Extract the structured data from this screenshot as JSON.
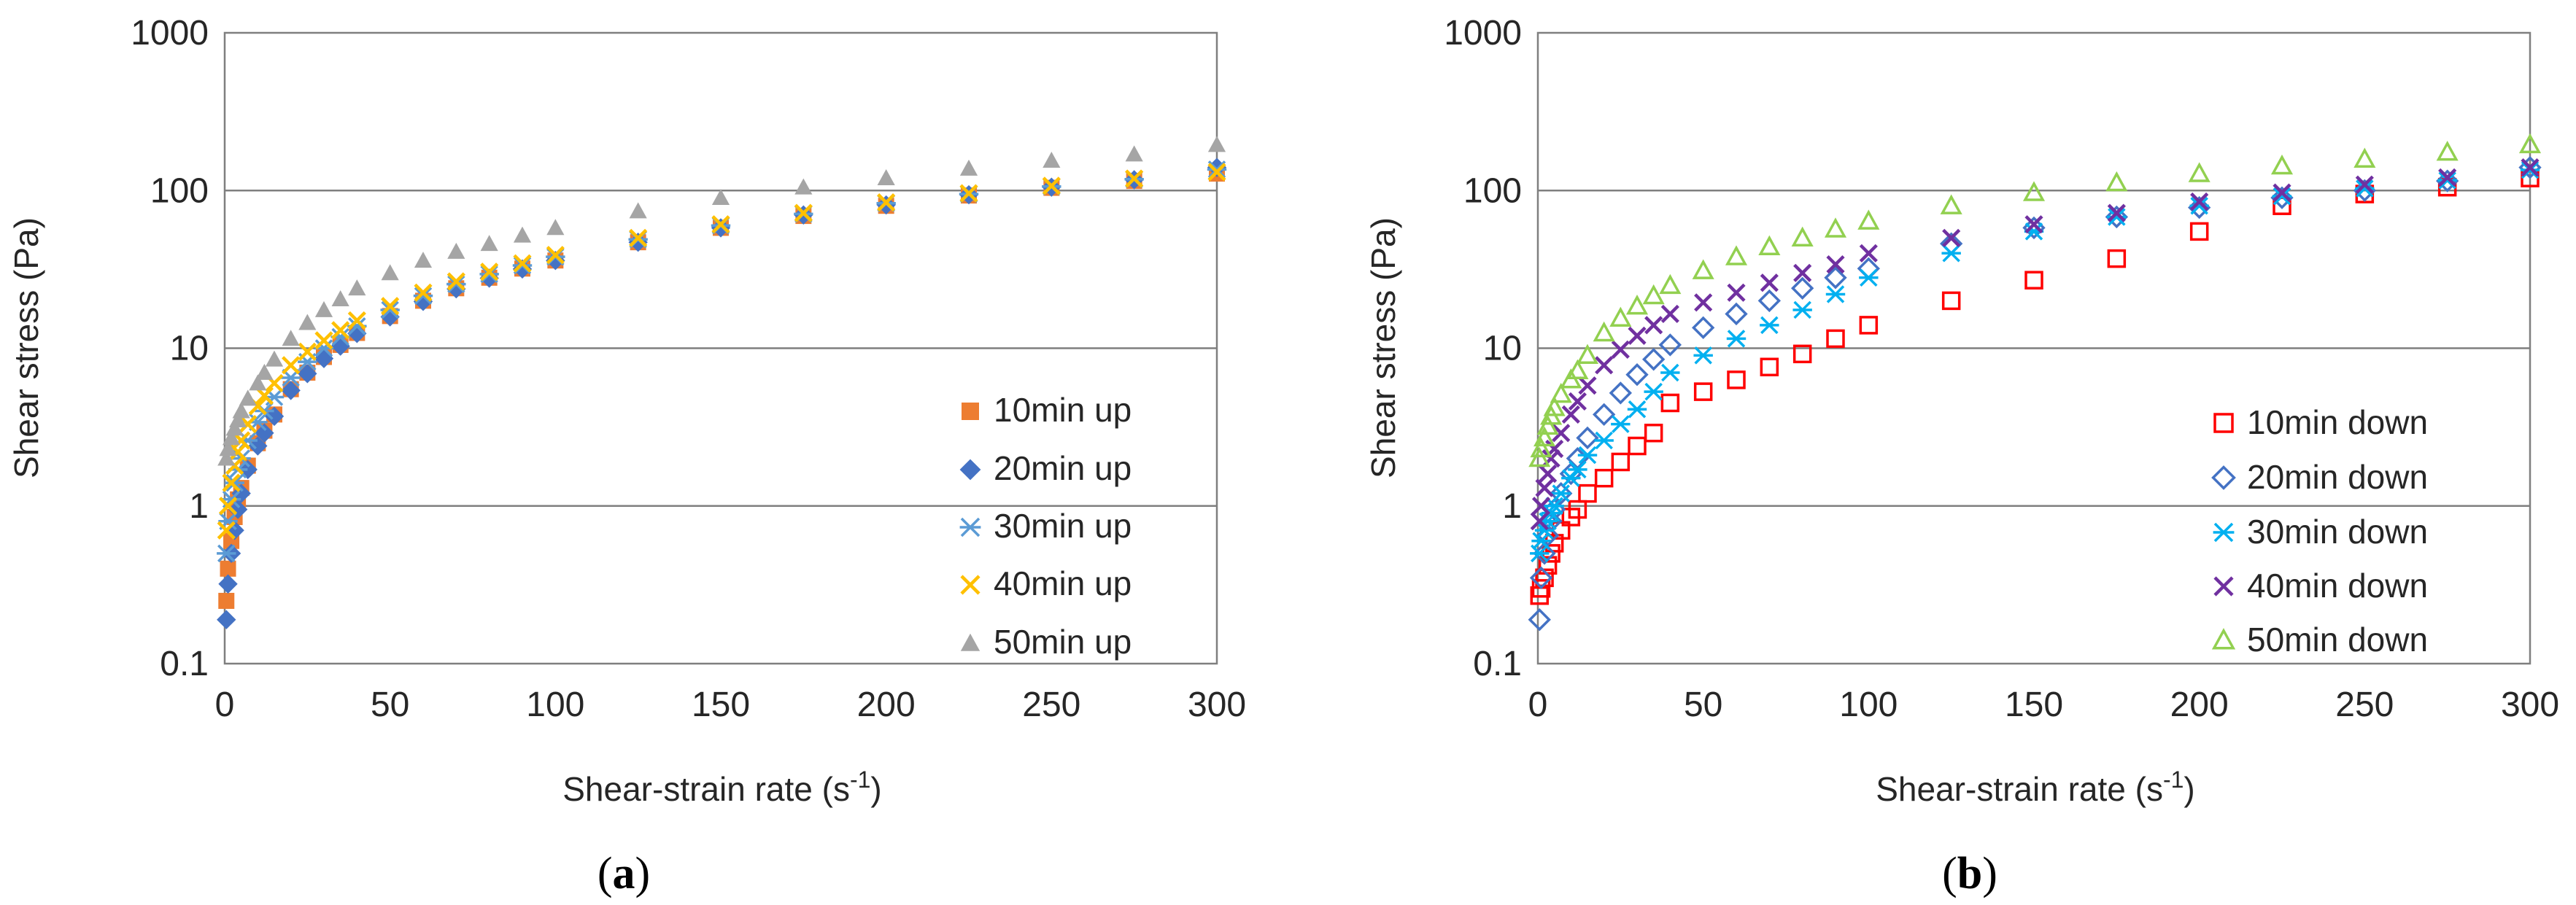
{
  "chart_data": [
    {
      "type": "scatter",
      "panel_label": {
        "open": "(",
        "letter": "a",
        "close": ")"
      },
      "xlabel": {
        "main": "Shear-strain rate (s",
        "sup": "-1",
        "end": ")"
      },
      "ylabel": "Shear  stress (Pa)",
      "yscale": "log",
      "xlim": [
        0,
        300
      ],
      "ylim": [
        0.1,
        1000
      ],
      "xticks": [
        "0",
        "50",
        "100",
        "150",
        "200",
        "250",
        "300"
      ],
      "yticks": [
        "0.1",
        "1",
        "10",
        "100",
        "1000"
      ],
      "grid": "horizontal",
      "legend_position": "right",
      "x": [
        0.5,
        1,
        2,
        3,
        4,
        5,
        7,
        10,
        12,
        15,
        20,
        25,
        30,
        35,
        40,
        50,
        60,
        70,
        80,
        90,
        100,
        125,
        150,
        175,
        200,
        225,
        250,
        275,
        300
      ],
      "series": [
        {
          "name": "10min up",
          "marker": "square",
          "color": "#ED7D31",
          "values": [
            0.25,
            0.4,
            0.6,
            0.85,
            1.1,
            1.3,
            1.8,
            2.5,
            3.0,
            3.8,
            5.5,
            7.0,
            8.8,
            10.5,
            12.5,
            16,
            20,
            24,
            28,
            32,
            36,
            47,
            58,
            69,
            80,
            93,
            104,
            115,
            128
          ]
        },
        {
          "name": "20min up",
          "marker": "diamond",
          "color": "#4472C4",
          "values": [
            0.19,
            0.32,
            0.5,
            0.7,
            0.95,
            1.2,
            1.7,
            2.4,
            2.9,
            3.7,
            5.4,
            6.9,
            8.6,
            10.3,
            12.4,
            15.8,
            19.8,
            23.8,
            27.8,
            31.8,
            36,
            47,
            58,
            70,
            81,
            94,
            105,
            117,
            140
          ]
        },
        {
          "name": "30min up",
          "marker": "asterisk",
          "color": "#5B9BD5",
          "values": [
            0.5,
            0.8,
            1.1,
            1.4,
            1.7,
            2.0,
            2.6,
            3.4,
            4.0,
            4.9,
            6.5,
            8.2,
            10,
            11.8,
            13.8,
            17.5,
            21.5,
            25.5,
            29.5,
            33.5,
            38,
            49,
            60,
            71,
            83,
            95,
            106,
            118,
            136
          ]
        },
        {
          "name": "40min up",
          "marker": "x",
          "color": "#FFC000",
          "values": [
            0.7,
            1.0,
            1.4,
            1.8,
            2.2,
            2.6,
            3.3,
            4.3,
            5.0,
            6.0,
            7.8,
            9.5,
            11.2,
            13,
            15,
            18.5,
            22.5,
            26.5,
            30.5,
            34.5,
            39,
            50,
            61,
            72,
            84,
            96,
            107,
            119,
            131
          ]
        },
        {
          "name": "50min up",
          "marker": "triangle",
          "color": "#A5A5A5",
          "values": [
            2.0,
            2.3,
            2.7,
            3.1,
            3.5,
            4.0,
            4.8,
            6.0,
            7.0,
            8.5,
            11.5,
            14.5,
            17.5,
            20.5,
            24,
            30,
            36,
            41,
            46,
            52,
            58,
            74,
            90,
            105,
            120,
            138,
            155,
            170,
            195
          ]
        }
      ]
    },
    {
      "type": "scatter",
      "panel_label": {
        "open": "(",
        "letter": "b",
        "close": ")"
      },
      "xlabel": {
        "main": "Shear-strain rate (s",
        "sup": "-1",
        "end": ")"
      },
      "ylabel": "Shear  stress (Pa)",
      "yscale": "log",
      "xlim": [
        0,
        300
      ],
      "ylim": [
        0.1,
        1000
      ],
      "xticks": [
        "0",
        "50",
        "100",
        "150",
        "200",
        "250",
        "300"
      ],
      "yticks": [
        "0.1",
        "1",
        "10",
        "100",
        "1000"
      ],
      "grid": "horizontal",
      "legend_position": "right",
      "x": [
        0.5,
        1,
        2,
        3,
        4,
        5,
        7,
        10,
        12,
        15,
        20,
        25,
        30,
        35,
        40,
        50,
        60,
        70,
        80,
        90,
        100,
        125,
        150,
        175,
        200,
        225,
        250,
        275,
        300
      ],
      "series": [
        {
          "name": "10min down",
          "marker": "open-square",
          "color": "#FF0000",
          "values": [
            0.27,
            0.3,
            0.35,
            0.42,
            0.5,
            0.58,
            0.7,
            0.85,
            0.95,
            1.2,
            1.5,
            1.9,
            2.4,
            2.9,
            4.5,
            5.3,
            6.3,
            7.6,
            9.2,
            11.5,
            14,
            20,
            27,
            37,
            55,
            80,
            95,
            105,
            120
          ]
        },
        {
          "name": "20min down",
          "marker": "open-diamond",
          "color": "#4472C4",
          "values": [
            0.19,
            0.35,
            0.5,
            0.65,
            0.8,
            0.95,
            1.2,
            1.6,
            2.0,
            2.7,
            3.8,
            5.2,
            6.8,
            8.5,
            10.5,
            13.5,
            16.5,
            20,
            24,
            28,
            32,
            46,
            58,
            68,
            78,
            90,
            100,
            115,
            140
          ]
        },
        {
          "name": "30min down",
          "marker": "asterisk",
          "color": "#00B0F0",
          "values": [
            0.5,
            0.6,
            0.7,
            0.8,
            0.9,
            1.0,
            1.2,
            1.5,
            1.7,
            2.1,
            2.6,
            3.3,
            4.1,
            5.3,
            7.0,
            9,
            11.5,
            14,
            17.5,
            22,
            28,
            40,
            55,
            68,
            80,
            92,
            103,
            116,
            135
          ]
        },
        {
          "name": "40min down",
          "marker": "x",
          "color": "#7030A0",
          "values": [
            0.8,
            1.0,
            1.3,
            1.6,
            2.0,
            2.3,
            2.9,
            3.8,
            4.6,
            5.8,
            7.8,
            9.8,
            12,
            14,
            16.5,
            19.5,
            22.5,
            26,
            30,
            34,
            40,
            50,
            61,
            72,
            85,
            97,
            109,
            121,
            140
          ]
        },
        {
          "name": "50min down",
          "marker": "open-triangle",
          "color": "#92D050",
          "values": [
            2.0,
            2.3,
            2.7,
            3.2,
            3.7,
            4.2,
            5.1,
            6.3,
            7.2,
            9.0,
            12.5,
            15.5,
            18.5,
            21.5,
            25,
            31,
            38,
            44,
            50,
            57,
            64,
            80,
            97,
            112,
            128,
            143,
            158,
            175,
            195
          ]
        }
      ]
    }
  ]
}
